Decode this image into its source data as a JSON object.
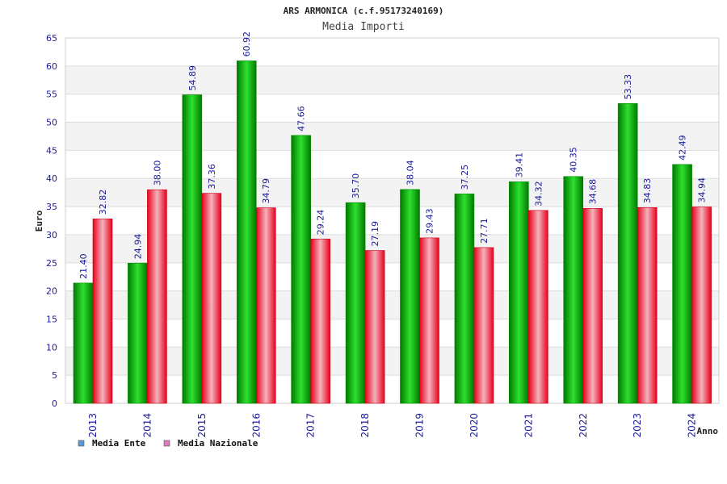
{
  "chart_data": {
    "type": "bar",
    "title": "ARS ARMONICA (c.f.95173240169)",
    "subtitle": "Media Importi",
    "xlabel": "Anno",
    "ylabel": "Euro",
    "ylim": [
      0,
      65
    ],
    "yticks": [
      "0",
      "5",
      "10",
      "15",
      "20",
      "25",
      "30",
      "35",
      "40",
      "45",
      "50",
      "55",
      "60",
      "65"
    ],
    "categories": [
      "2013",
      "2014",
      "2015",
      "2016",
      "2017",
      "2018",
      "2019",
      "2020",
      "2021",
      "2022",
      "2023",
      "2024"
    ],
    "series": [
      {
        "name": "Media Ente",
        "values": [
          21.4,
          24.94,
          54.89,
          60.92,
          47.66,
          35.7,
          38.04,
          37.25,
          39.41,
          40.35,
          53.33,
          42.49
        ],
        "labels": [
          "21.40",
          "24.94",
          "54.89",
          "60.92",
          "47.66",
          "35.70",
          "38.04",
          "37.25",
          "39.41",
          "40.35",
          "53.33",
          "42.49"
        ],
        "color": "#00a000",
        "legend_color": "#5b9bd5"
      },
      {
        "name": "Media Nazionale",
        "values": [
          32.82,
          38.0,
          37.36,
          34.79,
          29.24,
          27.19,
          29.43,
          27.71,
          34.32,
          34.68,
          34.83,
          34.94
        ],
        "labels": [
          "32.82",
          "38.00",
          "37.36",
          "34.79",
          "29.24",
          "27.19",
          "29.43",
          "27.71",
          "34.32",
          "34.68",
          "34.83",
          "34.94"
        ],
        "color": "#e8001c",
        "legend_color": "#e377c2"
      }
    ],
    "grid": true,
    "legend_position": "bottom-left"
  }
}
